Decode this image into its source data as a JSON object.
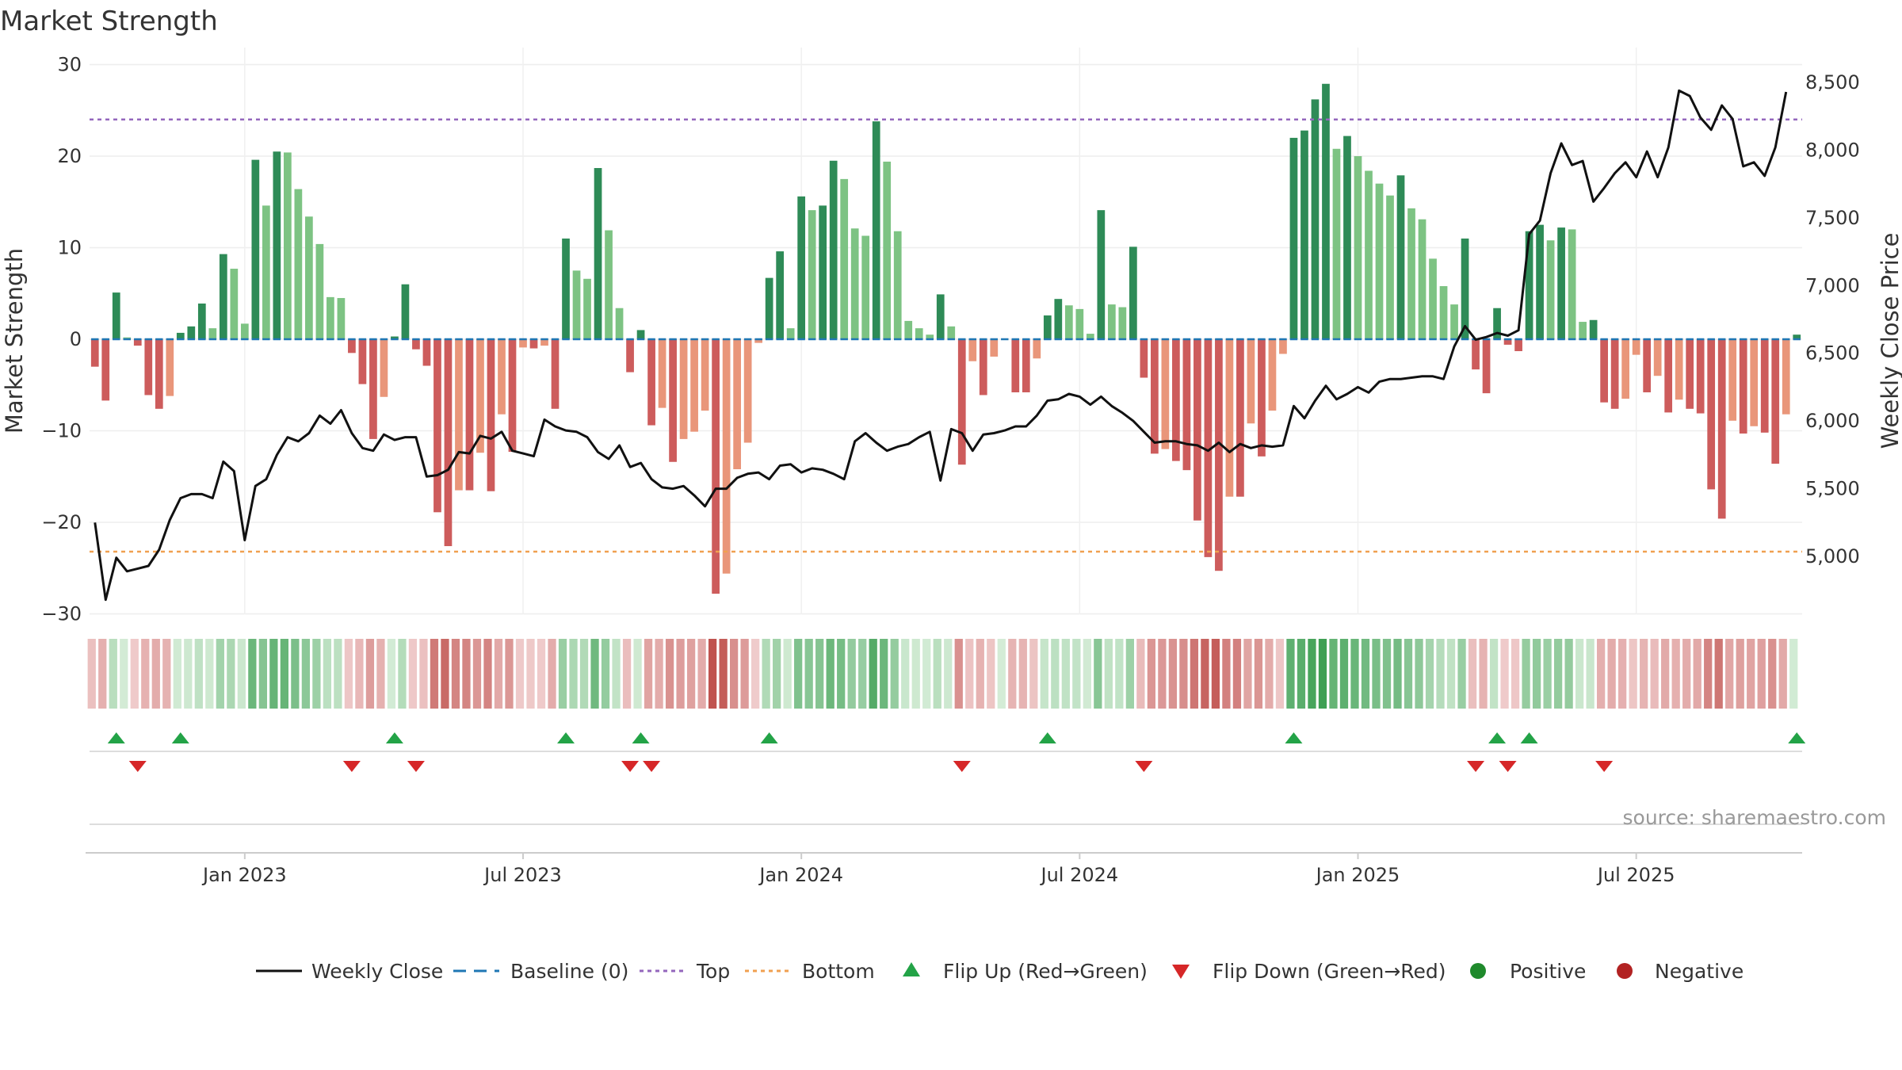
{
  "chart_data": {
    "type": "bar",
    "title": "Market Strength",
    "ylabel_left": "Market Strength",
    "ylabel_right": "Weekly Close Price",
    "ylim_left": [
      -30,
      30
    ],
    "ylim_right": [
      4500,
      8600
    ],
    "left_ticks": [
      "30",
      "20",
      "10",
      "0",
      "−10",
      "−20",
      "−30"
    ],
    "right_ticks": [
      "8,500",
      "8,000",
      "7,500",
      "7,000",
      "6,500",
      "6,000",
      "5,500",
      "5,000"
    ],
    "x_ticks": [
      "Jan 2023",
      "Jul 2023",
      "Jan 2024",
      "Jul 2024",
      "Jan 2025",
      "Jul 2025"
    ],
    "x_tick_weeks": [
      14.5,
      40.5,
      66.5,
      92.5,
      118.5,
      144.5
    ],
    "top_line": 24,
    "bottom_line": -23.2,
    "source": "source: sharemaestro.com",
    "colors": {
      "pos_strong": "#2e8b57",
      "pos_light": "#7dc383",
      "neg_strong": "#cd5c5c",
      "neg_light": "#e9967a",
      "top": "#9467bd",
      "bottom": "#f0a050",
      "baseline": "#1f77b4",
      "close": "#111111",
      "flip_up": "#23a347",
      "flip_down": "#d62728"
    },
    "strength": [
      -3,
      -6.7,
      5.1,
      0.2,
      -0.7,
      -6.1,
      -7.6,
      -6.2,
      0.7,
      1.4,
      3.9,
      1.2,
      9.3,
      7.7,
      1.7,
      19.6,
      14.6,
      20.5,
      20.4,
      16.4,
      13.4,
      10.4,
      4.6,
      4.5,
      -1.5,
      -4.9,
      -10.9,
      -6.3,
      0.3,
      6.0,
      -1.1,
      -2.9,
      -18.9,
      -22.6,
      -16.5,
      -16.5,
      -12.4,
      -16.6,
      -8.2,
      -12.3,
      -0.9,
      -1.0,
      -0.7,
      -7.6,
      11.0,
      7.5,
      6.6,
      18.7,
      11.9,
      3.4,
      -3.6,
      1.0,
      -9.4,
      -7.5,
      -13.4,
      -10.9,
      -10.1,
      -7.8,
      -27.8,
      -25.6,
      -14.2,
      -11.3,
      -0.4,
      6.7,
      9.6,
      1.2,
      15.6,
      14.1,
      14.6,
      19.5,
      17.5,
      12.1,
      11.3,
      23.8,
      19.4,
      11.8,
      2.0,
      1.2,
      0.5,
      4.9,
      1.4,
      -13.7,
      -2.4,
      -6.1,
      -1.9,
      0.0,
      -5.8,
      -5.8,
      -2.1,
      2.6,
      4.4,
      3.7,
      3.3,
      0.6,
      14.1,
      3.8,
      3.5,
      10.1,
      -4.2,
      -12.5,
      -12.0,
      -13.3,
      -14.3,
      -19.8,
      -23.8,
      -25.3,
      -17.2,
      -17.2,
      -9.2,
      -12.8,
      -7.8,
      -1.6,
      22.0,
      22.8,
      26.2,
      27.9,
      20.8,
      22.2,
      20.0,
      18.4,
      17.0,
      15.7,
      17.9,
      14.3,
      13.1,
      8.8,
      5.8,
      3.8,
      11.0,
      -3.3,
      -5.9,
      3.4,
      -0.6,
      -1.3,
      11.8,
      12.5,
      10.8,
      12.2,
      12.0,
      1.9,
      2.1,
      -6.9,
      -7.6,
      -6.5,
      -1.7,
      -5.8,
      -4.0,
      -8.0,
      -6.6,
      -7.6,
      -8.1,
      -16.4,
      -19.6,
      -8.9,
      -10.3,
      -9.5,
      -10.2,
      -13.6,
      -8.2,
      0.5
    ],
    "close": [
      5250,
      4680,
      4990,
      4890,
      4910,
      4930,
      5050,
      5270,
      5430,
      5460,
      5460,
      5430,
      5700,
      5630,
      5120,
      5520,
      5570,
      5750,
      5880,
      5850,
      5910,
      6040,
      5980,
      6080,
      5910,
      5800,
      5780,
      5900,
      5860,
      5880,
      5880,
      5590,
      5600,
      5640,
      5770,
      5760,
      5890,
      5870,
      5920,
      5780,
      5760,
      5740,
      6010,
      5960,
      5930,
      5920,
      5880,
      5770,
      5720,
      5820,
      5660,
      5690,
      5570,
      5510,
      5500,
      5520,
      5450,
      5370,
      5500,
      5500,
      5580,
      5610,
      5620,
      5570,
      5670,
      5680,
      5620,
      5650,
      5640,
      5610,
      5570,
      5850,
      5910,
      5840,
      5780,
      5810,
      5830,
      5880,
      5920,
      5560,
      5940,
      5910,
      5780,
      5900,
      5910,
      5930,
      5960,
      5960,
      6040,
      6150,
      6160,
      6200,
      6180,
      6120,
      6180,
      6110,
      6060,
      6000,
      5920,
      5840,
      5850,
      5850,
      5830,
      5820,
      5780,
      5840,
      5770,
      5830,
      5800,
      5820,
      5810,
      5820,
      6110,
      6020,
      6150,
      6260,
      6160,
      6200,
      6250,
      6210,
      6290,
      6310,
      6310,
      6320,
      6330,
      6330,
      6310,
      6550,
      6700,
      6600,
      6620,
      6650,
      6630,
      6670,
      7380,
      7480,
      7830,
      8050,
      7890,
      7920,
      7620,
      7720,
      7830,
      7910,
      7800,
      7990,
      7800,
      8020,
      8440,
      8400,
      8240,
      8150,
      8330,
      8230,
      7880,
      7910,
      7810,
      8020,
      8430
    ]
  },
  "legend": {
    "items": [
      {
        "label": "Weekly Close",
        "type": "line"
      },
      {
        "label": "Baseline (0)",
        "type": "dash"
      },
      {
        "label": "Top",
        "type": "dot-top"
      },
      {
        "label": "Bottom",
        "type": "dot-bottom"
      },
      {
        "label": "Flip Up (Red→Green)",
        "type": "tri-up"
      },
      {
        "label": "Flip Down (Green→Red)",
        "type": "tri-down"
      },
      {
        "label": "Positive",
        "type": "circle-pos"
      },
      {
        "label": "Negative",
        "type": "circle-neg"
      }
    ]
  }
}
